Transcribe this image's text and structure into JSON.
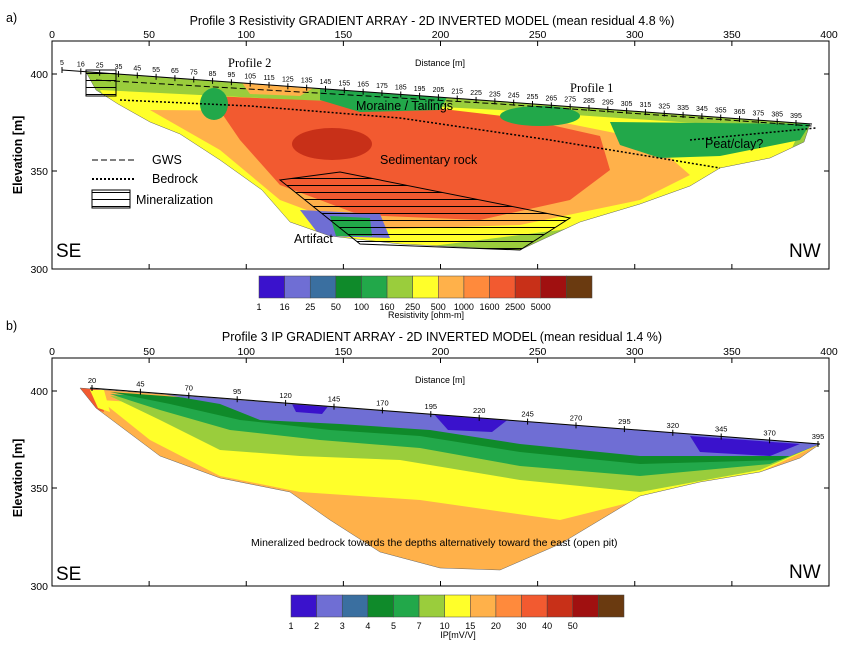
{
  "panel_a": {
    "panel_label": "a)",
    "title": "Profile 3 Resistivity GRADIENT ARRAY - 2D INVERTED MODEL (mean residual 4.8 %)",
    "distance_label": "Distance [m]",
    "elevation_label": "Elevation [m]",
    "x_ticks": [
      "0",
      "50",
      "100",
      "150",
      "200",
      "250",
      "300",
      "350",
      "400"
    ],
    "y_ticks": [
      "400",
      "350",
      "300"
    ],
    "electrodes": [
      "5",
      "16",
      "25",
      "35",
      "45",
      "55",
      "65",
      "75",
      "85",
      "95",
      "105",
      "115",
      "125",
      "135",
      "145",
      "155",
      "165",
      "175",
      "185",
      "195",
      "205",
      "215",
      "225",
      "235",
      "245",
      "255",
      "265",
      "275",
      "285",
      "295",
      "305",
      "315",
      "325",
      "335",
      "345",
      "355",
      "365",
      "375",
      "385",
      "395"
    ],
    "annotations": {
      "profile2": "Profile 2",
      "profile1": "Profile 1",
      "moraine": "Moraine / Tailings",
      "sedimentary": "Sedimentary rock",
      "peat": "Peat/clay?",
      "artifact": "Artifact"
    },
    "legend": {
      "gws": "GWS",
      "bedrock": "Bedrock",
      "mineralization": "Mineralization"
    },
    "corner_left": "SE",
    "corner_right": "NW",
    "colorbar": {
      "label": "Resistivity [ohm-m]",
      "ticks": [
        "1",
        "16",
        "25",
        "50",
        "100",
        "160",
        "250",
        "500",
        "1000",
        "1600",
        "2500",
        "5000"
      ],
      "colors": [
        "#3a12cc",
        "#6f6ed4",
        "#3a6fa0",
        "#0f8a2a",
        "#22a84a",
        "#9acd3c",
        "#ffff2a",
        "#ffb14a",
        "#ff8a3c",
        "#f25a30",
        "#c83018",
        "#a01010",
        "#6a3a10"
      ]
    }
  },
  "panel_b": {
    "panel_label": "b)",
    "title": "Profile 3 IP GRADIENT ARRAY - 2D INVERTED MODEL (mean residual 1.4 %)",
    "distance_label": "Distance [m]",
    "elevation_label": "Elevation [m]",
    "x_ticks": [
      "0",
      "50",
      "100",
      "150",
      "200",
      "250",
      "300",
      "350",
      "400"
    ],
    "y_ticks": [
      "400",
      "350",
      "300"
    ],
    "electrodes": [
      "20",
      "45",
      "70",
      "95",
      "120",
      "145",
      "170",
      "195",
      "220",
      "245",
      "270",
      "295",
      "320",
      "345",
      "370",
      "395"
    ],
    "annotations": {
      "mineralized": "Mineralized bedrock towards the depths alternatively toward the east (open pit)"
    },
    "corner_left": "SE",
    "corner_right": "NW",
    "colorbar": {
      "label": "IP[mV/V]",
      "ticks": [
        "1",
        "2",
        "3",
        "4",
        "5",
        "7",
        "10",
        "15",
        "20",
        "30",
        "40",
        "50"
      ],
      "colors": [
        "#3a12cc",
        "#6f6ed4",
        "#3a6fa0",
        "#0f8a2a",
        "#22a84a",
        "#9acd3c",
        "#ffff2a",
        "#ffb14a",
        "#ff8a3c",
        "#f25a30",
        "#c83018",
        "#a01010",
        "#6a3a10"
      ]
    }
  }
}
